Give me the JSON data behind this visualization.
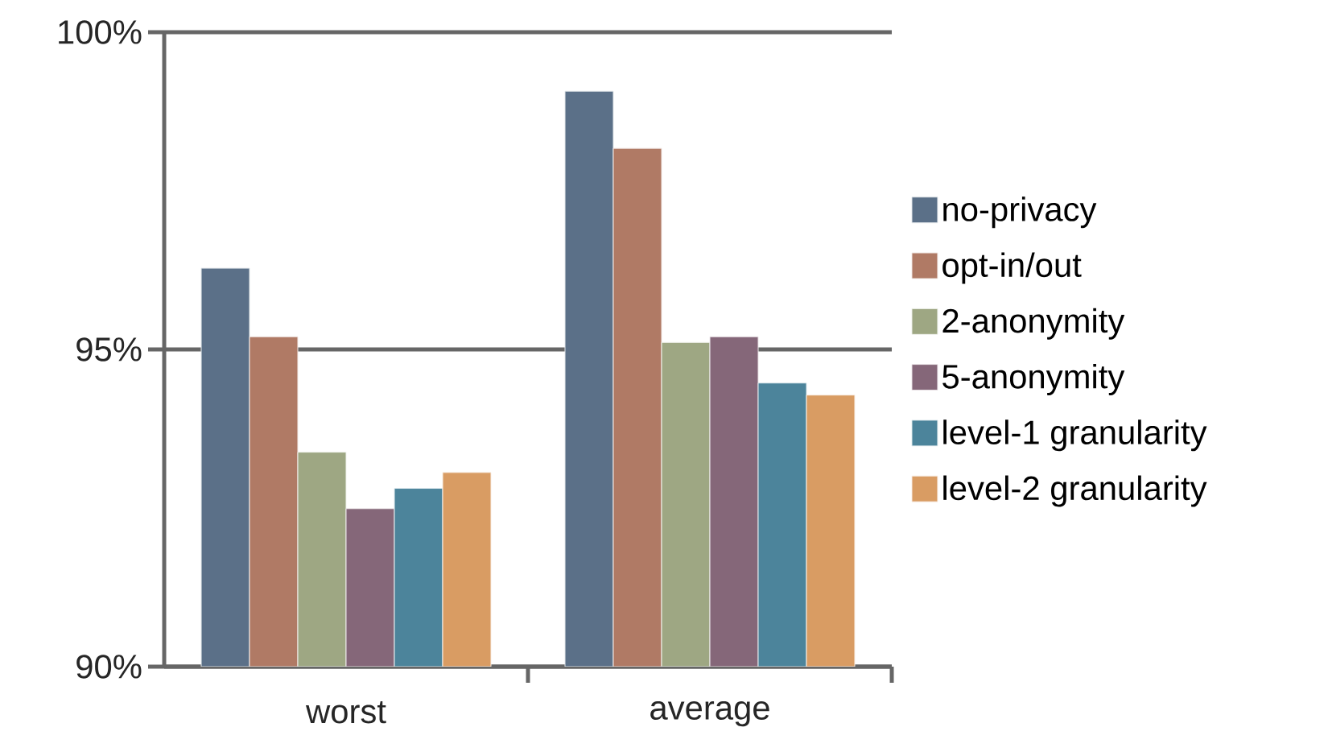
{
  "chart_data": {
    "type": "bar",
    "categories": [
      "worst",
      "average"
    ],
    "series": [
      {
        "name": "no-privacy",
        "color": "#5b7088",
        "values": [
          96.28,
          99.07
        ]
      },
      {
        "name": "opt-in/out",
        "color": "#b07a65",
        "values": [
          95.2,
          98.17
        ]
      },
      {
        "name": "2-anonymity",
        "color": "#9ea783",
        "values": [
          93.38,
          95.11
        ]
      },
      {
        "name": "5-anonymity",
        "color": "#856779",
        "values": [
          92.49,
          95.2
        ]
      },
      {
        "name": "level-1 granularity",
        "color": "#4c849b",
        "values": [
          92.81,
          94.47
        ]
      },
      {
        "name": "level-2 granularity",
        "color": "#d99c63",
        "values": [
          93.06,
          94.28
        ]
      }
    ],
    "ylim": [
      90,
      100
    ],
    "yticks": [
      {
        "value": 90,
        "label": "90%"
      },
      {
        "value": 95,
        "label": "95%"
      },
      {
        "value": 100,
        "label": "100%"
      }
    ],
    "grid": "y",
    "legend": "right"
  }
}
